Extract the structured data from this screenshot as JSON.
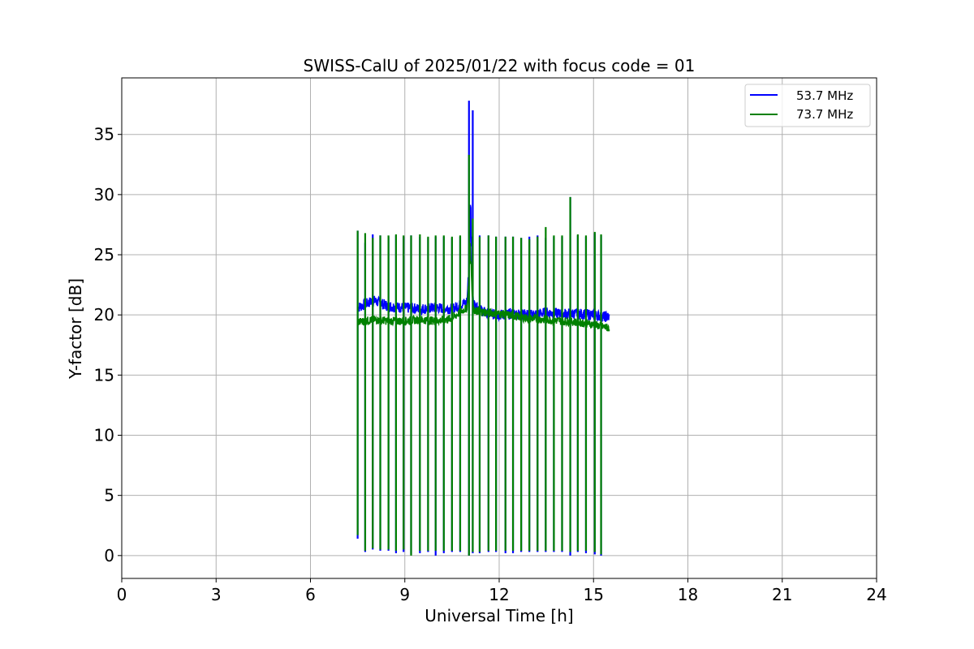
{
  "chart_data": {
    "type": "line",
    "title": "SWISS-CalU of 2025/01/22 with focus code = 01",
    "xlabel": "Universal Time [h]",
    "ylabel": "Y-factor [dB]",
    "xlim": [
      0,
      24
    ],
    "ylim": [
      -1.9,
      39.7
    ],
    "xticks": [
      "0",
      "3",
      "6",
      "9",
      "12",
      "15",
      "18",
      "21",
      "24"
    ],
    "yticks": [
      "0",
      "5",
      "10",
      "15",
      "20",
      "25",
      "30",
      "35"
    ],
    "grid": true,
    "legend_position": "top-right",
    "series": [
      {
        "name": "53.7 MHz",
        "color": "#0000ff",
        "baseline": [
          [
            7.5,
            20.6
          ],
          [
            8.0,
            21.2
          ],
          [
            8.5,
            20.7
          ],
          [
            9.0,
            20.6
          ],
          [
            9.5,
            20.5
          ],
          [
            10.0,
            20.6
          ],
          [
            10.5,
            20.5
          ],
          [
            10.9,
            21.0
          ],
          [
            11.3,
            20.6
          ],
          [
            11.6,
            20.1
          ],
          [
            12.0,
            20.0
          ],
          [
            12.5,
            20.1
          ],
          [
            13.0,
            20.0
          ],
          [
            13.5,
            20.2
          ],
          [
            14.0,
            20.1
          ],
          [
            14.5,
            20.1
          ],
          [
            15.0,
            20.0
          ],
          [
            15.5,
            19.8
          ]
        ],
        "spikes": [
          [
            7.5,
            1.4,
            27.0
          ],
          [
            7.74,
            0.3,
            26.0
          ],
          [
            7.98,
            0.5,
            26.7
          ],
          [
            8.22,
            0.4,
            26.6
          ],
          [
            8.48,
            0.4,
            26.5
          ],
          [
            8.72,
            0.2,
            26.6
          ],
          [
            8.96,
            0.3,
            26.5
          ],
          [
            9.2,
            0.1,
            26.6
          ],
          [
            9.48,
            0.2,
            26.5
          ],
          [
            9.74,
            0.3,
            26.4
          ],
          [
            9.98,
            0.0,
            26.5
          ],
          [
            10.24,
            0.2,
            26.5
          ],
          [
            10.5,
            0.3,
            26.4
          ],
          [
            10.76,
            0.3,
            26.5
          ],
          [
            11.04,
            0.0,
            37.8
          ],
          [
            11.16,
            0.2,
            37.0
          ],
          [
            11.38,
            0.2,
            26.6
          ],
          [
            11.66,
            0.3,
            26.6
          ],
          [
            11.9,
            0.3,
            26.5
          ],
          [
            12.2,
            0.2,
            26.5
          ],
          [
            12.44,
            0.2,
            26.5
          ],
          [
            12.7,
            0.3,
            26.4
          ],
          [
            12.96,
            0.3,
            26.5
          ],
          [
            13.22,
            0.3,
            26.6
          ],
          [
            13.48,
            0.3,
            26.4
          ],
          [
            13.74,
            0.3,
            26.5
          ],
          [
            14.0,
            0.3,
            26.5
          ],
          [
            14.26,
            0.0,
            29.8
          ],
          [
            14.5,
            0.3,
            26.6
          ],
          [
            14.76,
            0.2,
            26.5
          ],
          [
            15.04,
            0.1,
            26.8
          ],
          [
            15.24,
            0.0,
            26.6
          ]
        ]
      },
      {
        "name": "73.7 MHz",
        "color": "#008000",
        "baseline": [
          [
            7.5,
            19.4
          ],
          [
            8.0,
            19.6
          ],
          [
            8.5,
            19.5
          ],
          [
            9.0,
            19.5
          ],
          [
            9.5,
            19.6
          ],
          [
            10.0,
            19.5
          ],
          [
            10.5,
            19.7
          ],
          [
            10.9,
            20.5
          ],
          [
            11.3,
            20.3
          ],
          [
            11.6,
            20.2
          ],
          [
            12.0,
            20.1
          ],
          [
            12.5,
            19.9
          ],
          [
            13.0,
            19.7
          ],
          [
            13.5,
            19.6
          ],
          [
            14.0,
            19.5
          ],
          [
            14.5,
            19.4
          ],
          [
            15.0,
            19.2
          ],
          [
            15.5,
            18.9
          ]
        ],
        "spikes": [
          [
            7.5,
            1.7,
            27.0
          ],
          [
            7.74,
            0.4,
            26.8
          ],
          [
            7.98,
            0.6,
            26.4
          ],
          [
            8.22,
            0.5,
            26.6
          ],
          [
            8.48,
            0.5,
            26.6
          ],
          [
            8.72,
            0.4,
            26.7
          ],
          [
            8.96,
            0.5,
            26.6
          ],
          [
            9.2,
            0.0,
            26.6
          ],
          [
            9.48,
            0.4,
            26.7
          ],
          [
            9.74,
            0.4,
            26.5
          ],
          [
            9.98,
            0.4,
            26.6
          ],
          [
            10.24,
            0.4,
            26.6
          ],
          [
            10.5,
            0.4,
            26.5
          ],
          [
            10.76,
            0.4,
            26.6
          ],
          [
            11.04,
            0.0,
            33.3
          ],
          [
            11.16,
            0.3,
            28.0
          ],
          [
            11.38,
            0.3,
            26.5
          ],
          [
            11.66,
            0.4,
            26.6
          ],
          [
            11.9,
            0.4,
            26.5
          ],
          [
            12.2,
            0.4,
            26.5
          ],
          [
            12.44,
            0.4,
            26.5
          ],
          [
            12.7,
            0.4,
            26.4
          ],
          [
            12.96,
            0.4,
            26.3
          ],
          [
            13.22,
            0.4,
            26.5
          ],
          [
            13.48,
            0.4,
            27.3
          ],
          [
            13.74,
            0.4,
            26.6
          ],
          [
            14.0,
            0.4,
            26.6
          ],
          [
            14.26,
            0.3,
            29.8
          ],
          [
            14.5,
            0.4,
            26.7
          ],
          [
            14.76,
            0.4,
            26.6
          ],
          [
            15.04,
            0.3,
            26.9
          ],
          [
            15.24,
            0.1,
            26.7
          ]
        ]
      }
    ]
  }
}
